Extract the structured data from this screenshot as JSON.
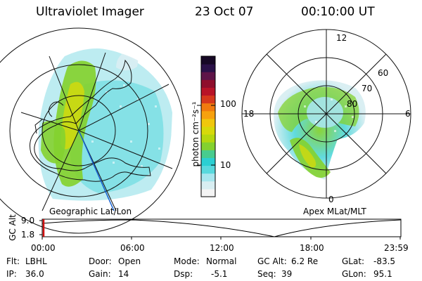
{
  "header": {
    "instrument": "Ultraviolet Imager",
    "date": "23 Oct 07",
    "time": "00:10:00 UT"
  },
  "colorbar": {
    "label": "photon cm⁻²s⁻¹",
    "ticks": [
      "100",
      "10"
    ],
    "colors": [
      "#f4f4f4",
      "#d8eef2",
      "#a7e6ee",
      "#58d9dd",
      "#2bcfd2",
      "#48cc8e",
      "#84d12f",
      "#b6d70f",
      "#d7d90a",
      "#f0c70c",
      "#f7a10e",
      "#f17a0e",
      "#d6381c",
      "#b81327",
      "#8f0e2c",
      "#5e1448",
      "#2a1148",
      "#160825"
    ]
  },
  "panels": {
    "left_label": "Geographic Lat/Lon",
    "right_label": "Apex MLat/MLT",
    "mlat_labels": [
      "80",
      "70",
      "60"
    ],
    "mlt_labels": [
      "12",
      "18",
      "6",
      "0"
    ]
  },
  "orbit": {
    "ylabel": "GC Alt",
    "yticks": [
      "9.0",
      "1.8"
    ],
    "xticks": [
      "00:00",
      "06:00",
      "12:00",
      "18:00",
      "23:59"
    ],
    "marker_color": "#d01010"
  },
  "status": {
    "filter_label": "Flt:",
    "filter_value": "LBHL",
    "ip_label": "IP:",
    "ip_value": "36.0",
    "door_label": "Door:",
    "door_value": "Open",
    "gain_label": "Gain:",
    "gain_value": "14",
    "mode_label": "Mode:",
    "mode_value": "Normal",
    "dsp_label": "Dsp:",
    "dsp_value": "-5.1",
    "gcalt_label": "GC Alt:",
    "gcalt_value": "6.2 Re",
    "seq_label": "Seq:",
    "seq_value": "39",
    "glat_label": "GLat:",
    "glat_value": "-83.5",
    "glon_label": "GLon:",
    "glon_value": "95.1"
  }
}
